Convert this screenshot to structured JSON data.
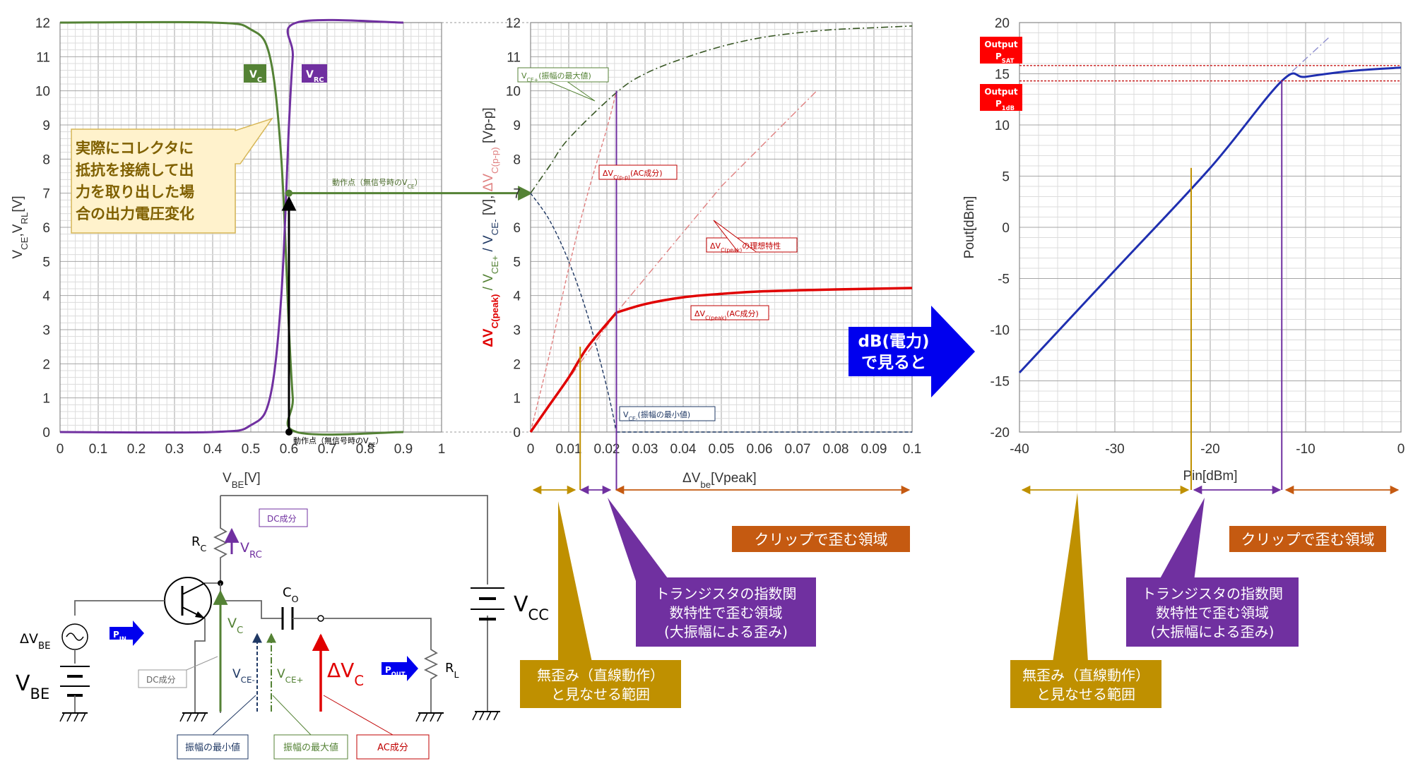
{
  "colors": {
    "green": "#548235",
    "purple": "#7030a0",
    "red": "#e00000",
    "blue": "#1f2fb0",
    "gold": "#bf9000",
    "orange": "#c55a11",
    "darkblue": "#1f3864",
    "black": "#000000"
  },
  "chart_data": [
    {
      "type": "line",
      "xlabel": "V",
      "xlabel_sub": "BE",
      "xlabel_unit": "[V]",
      "ylabel": "V",
      "ylabel_sub1": "CE",
      "ylabel_mid": ",V",
      "ylabel_sub2": "RL",
      "ylabel_unit": "[V]",
      "xlim": [
        0,
        1
      ],
      "ylim": [
        0,
        12
      ],
      "x_ticks": [
        "0",
        "0.1",
        "0.2",
        "0.3",
        "0.4",
        "0.5",
        "0.6",
        "0.7",
        "0.8",
        "0.9",
        "1"
      ],
      "y_ticks": [
        "0",
        "1",
        "2",
        "3",
        "4",
        "5",
        "6",
        "7",
        "8",
        "9",
        "10",
        "11",
        "12"
      ],
      "series": [
        {
          "name": "V",
          "sub": "C",
          "color": "#548235",
          "x": [
            0,
            0.4,
            0.5,
            0.55,
            0.58,
            0.6,
            0.61,
            0.62,
            0.9
          ],
          "y": [
            12,
            12,
            11.8,
            11,
            8,
            3,
            1,
            0,
            0
          ]
        },
        {
          "name": "V",
          "sub": "RC",
          "color": "#7030a0",
          "x": [
            0,
            0.4,
            0.5,
            0.55,
            0.58,
            0.6,
            0.61,
            0.62,
            0.9
          ],
          "y": [
            0,
            0,
            0.2,
            1,
            4,
            9,
            11,
            12,
            12
          ]
        }
      ],
      "operating_point": {
        "x": 0.6,
        "y": 7
      },
      "annotations": {
        "callout": "実際にコレクタに抵抗を接続して出力を取り出した場合の出力電圧変化",
        "op_h": "動作点（無信号時のV",
        "op_h_sub": "CE",
        "op_h_end": "）",
        "op_v": "動作点（無信号時のV",
        "op_v_sub": "BE",
        "op_v_end": "）"
      }
    },
    {
      "type": "line",
      "xlabel": "ΔV",
      "xlabel_sub": "be",
      "xlabel_unit": "[Vpeak]",
      "ylabel_parts": [
        {
          "t": "ΔV",
          "sub": "C(peak)",
          "color": "#e00000"
        },
        {
          "t": " / V",
          "sub": "CE+",
          "color": "#548235"
        },
        {
          "t": " / V",
          "sub": "CE-",
          "color": "#1f3864"
        },
        {
          "t": " [V], ",
          "color": "#333"
        },
        {
          "t": "ΔV",
          "sub": "C(p-p)",
          "color": "#e08080"
        },
        {
          "t": " [Vp-p]",
          "color": "#333"
        }
      ],
      "xlim": [
        0,
        0.1
      ],
      "ylim": [
        0,
        12
      ],
      "x_ticks": [
        "0",
        "0.01",
        "0.02",
        "0.03",
        "0.04",
        "0.05",
        "0.06",
        "0.07",
        "0.08",
        "0.09",
        "0.1"
      ],
      "y_ticks": [
        "0",
        "1",
        "2",
        "3",
        "4",
        "5",
        "6",
        "7",
        "8",
        "9",
        "10",
        "11",
        "12"
      ],
      "series": [
        {
          "name": "ΔVC(peak)(AC成分)",
          "color": "#e00000",
          "x": [
            0,
            0.005,
            0.01,
            0.015,
            0.0225,
            0.03,
            0.04,
            0.05,
            0.06,
            0.08,
            0.1
          ],
          "y": [
            0,
            0.8,
            1.6,
            2.5,
            3.5,
            3.75,
            3.95,
            4.05,
            4.12,
            4.18,
            4.22
          ]
        },
        {
          "name": "VCE+(振幅の最大値)",
          "color": "#375623",
          "x": [
            0,
            0.005,
            0.01,
            0.0225,
            0.03,
            0.04,
            0.05,
            0.06,
            0.07,
            0.08,
            0.09,
            0.1
          ],
          "y": [
            7,
            7.8,
            8.6,
            9.95,
            10.5,
            10.95,
            11.3,
            11.55,
            11.7,
            11.8,
            11.85,
            11.9
          ]
        },
        {
          "name": "VCE-(振幅の最小値)",
          "color": "#1f3864",
          "x": [
            0,
            0.005,
            0.01,
            0.015,
            0.02,
            0.0225,
            0.03,
            0.1
          ],
          "y": [
            7,
            6.2,
            5,
            3.4,
            1.3,
            0,
            0,
            0
          ]
        },
        {
          "name": "ΔVC(p-p)(AC成分)",
          "color": "#e08080",
          "x": [
            0,
            0.005,
            0.01,
            0.015,
            0.02,
            0.0225
          ],
          "y": [
            0,
            2.3,
            4.8,
            7,
            8.9,
            10
          ]
        },
        {
          "name": "ΔVC(peak)の理想特性",
          "color": "#e08080",
          "x": [
            0,
            0.0225,
            0.05,
            0.075
          ],
          "y": [
            0,
            3.5,
            7.2,
            10
          ]
        }
      ],
      "vlines": [
        {
          "x": 0.0225,
          "color": "#7030a0"
        },
        {
          "x": 0.013,
          "color": "#bf9000",
          "ymax": 2.5
        }
      ],
      "labels": {
        "vce_max": "V",
        "vce_max_sub": "CE+",
        "vce_max_end": "(振幅の最大値)",
        "vce_min": "V",
        "vce_min_sub": "CE-",
        "vce_min_end": "(振幅の最小値)",
        "dvc_pp": "ΔV",
        "dvc_pp_sub": "C(p-p)",
        "dvc_pp_end": "(AC成分)",
        "dvc_ideal": "ΔV",
        "dvc_ideal_sub": "C(peak)",
        "dvc_ideal_end": "の理想特性",
        "dvc_peak": "ΔV",
        "dvc_peak_sub": "C(peak)",
        "dvc_peak_end": "(AC成分)"
      }
    },
    {
      "type": "line",
      "xlabel": "Pin[dBm]",
      "ylabel": "Pout[dBm]",
      "xlim": [
        -40,
        0
      ],
      "ylim": [
        -20,
        20
      ],
      "x_ticks": [
        "-40",
        "-30",
        "-20",
        "-10",
        "0"
      ],
      "y_ticks": [
        "-20",
        "-15",
        "-10",
        "-5",
        "0",
        "5",
        "10",
        "15",
        "20"
      ],
      "series": [
        {
          "name": "Pout",
          "color": "#1f2fb0",
          "x": [
            -40,
            -30,
            -20,
            -12.5,
            -10,
            -5,
            0
          ],
          "y": [
            -14.2,
            -4.2,
            5.8,
            14.3,
            14.7,
            15.3,
            15.6
          ]
        },
        {
          "name": "ideal",
          "color": "#9090d0",
          "x": [
            -12.5,
            -7.5
          ],
          "y": [
            14.3,
            18.6
          ]
        }
      ],
      "hlines": [
        {
          "y": 15.8,
          "label_top": "Output",
          "label_bot": "P",
          "label_sub": "SAT"
        },
        {
          "y": 14.3,
          "label_top": "Output",
          "label_bot": "P",
          "label_sub": "1dB"
        }
      ],
      "vlines": [
        {
          "x": -22,
          "color": "#bf9000"
        },
        {
          "x": -12.5,
          "color": "#7030a0"
        }
      ]
    }
  ],
  "arrow_label": {
    "line1": "dB(電力)",
    "line2": "で見ると"
  },
  "regions": {
    "clip": "クリップで歪む領域",
    "trans1": "トランジスタの指数関",
    "trans2": "数特性で歪む領域",
    "trans3": "(大振幅による歪み)",
    "linear1": "無歪み（直線動作）",
    "linear2": "と見なせる範囲"
  },
  "circuit": {
    "rc": "R",
    "rc_sub": "C",
    "vrc": "V",
    "vrc_sub": "RC",
    "dc_tag": "DC成分",
    "vc": "V",
    "vc_sub": "C",
    "vce_minus": "V",
    "vce_minus_sub": "CE-",
    "vce_plus": "V",
    "vce_plus_sub": "CE+",
    "co": "C",
    "co_sub": "O",
    "dvc": "ΔV",
    "dvc_sub": "C",
    "vcc": "V",
    "vcc_sub": "CC",
    "dvbe": "ΔV",
    "dvbe_sub": "BE",
    "vbe": "V",
    "vbe_sub": "BE",
    "pin": "P",
    "pin_sub": "IN",
    "pout": "P",
    "pout_sub": "OUT",
    "rl": "R",
    "rl_sub": "L",
    "tag_min": "振幅の最小値",
    "tag_max": "振幅の最大値",
    "tag_ac": "AC成分"
  }
}
